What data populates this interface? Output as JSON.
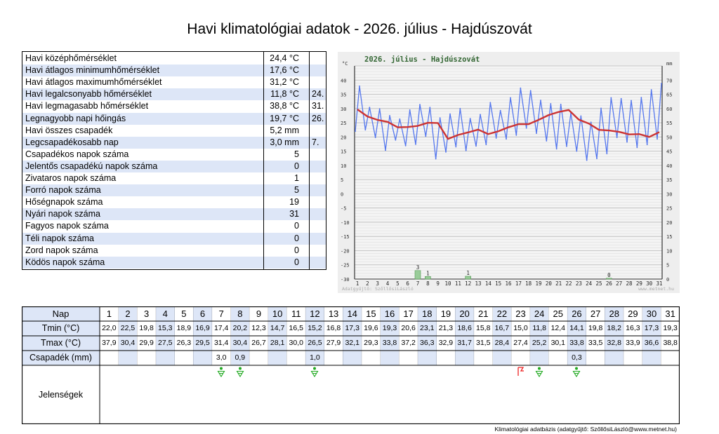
{
  "title": "Havi klimatológiai adatok - 2026. július - Hajdúszovát",
  "stats": [
    {
      "label": "Havi középhőmérséklet",
      "value": "24,4 °C",
      "day": ""
    },
    {
      "label": "Havi átlagos minimumhőmérséklet",
      "value": "17,6 °C",
      "day": ""
    },
    {
      "label": "Havi átlagos maximumhőmérséklet",
      "value": "31,2 °C",
      "day": ""
    },
    {
      "label": "Havi legalcsonyabb hőmérséklet",
      "value": "11,8 °C",
      "day": "24."
    },
    {
      "label": "Havi legmagasabb hőmérséklet",
      "value": "38,8 °C",
      "day": "31."
    },
    {
      "label": "Legnagyobb napi hőingás",
      "value": "19,7 °C",
      "day": "26."
    },
    {
      "label": "Havi összes csapadék",
      "value": "5,2 mm",
      "day": ""
    },
    {
      "label": "Legcsapadékosabb nap",
      "value": "3,0 mm",
      "day": "7."
    },
    {
      "label": "Csapadékos napok száma",
      "value": "5",
      "day": ""
    },
    {
      "label": "Jelentős csapadékú napok száma",
      "value": "0",
      "day": ""
    },
    {
      "label": "Zivataros napok száma",
      "value": "1",
      "day": ""
    },
    {
      "label": "Forró napok száma",
      "value": "5",
      "day": ""
    },
    {
      "label": "Hőségnapok száma",
      "value": "19",
      "day": ""
    },
    {
      "label": "Nyári napok száma",
      "value": "31",
      "day": ""
    },
    {
      "label": "Fagyos napok száma",
      "value": "0",
      "day": ""
    },
    {
      "label": "Téli napok száma",
      "value": "0",
      "day": ""
    },
    {
      "label": "Zord napok száma",
      "value": "0",
      "day": ""
    },
    {
      "label": "Ködös napok száma",
      "value": "0",
      "day": ""
    }
  ],
  "chart_data": {
    "type": "line",
    "title": "2026. július - Hajdúszovát",
    "ylabel_left": "°C",
    "ylabel_right": "mm",
    "ylim": [
      -30,
      45
    ],
    "ylim_right": [
      0,
      75
    ],
    "y_ticks_left": [
      "40",
      "35",
      "30",
      "25",
      "20",
      "15",
      "10",
      "5",
      "0",
      "-5",
      "-10",
      "-15",
      "-20",
      "-25",
      "-30"
    ],
    "y_ticks_right": [
      "70",
      "65",
      "60",
      "55",
      "50",
      "45",
      "40",
      "35",
      "30",
      "25",
      "20",
      "15",
      "10",
      "5",
      "0"
    ],
    "x": [
      1,
      2,
      3,
      4,
      5,
      6,
      7,
      8,
      9,
      10,
      11,
      12,
      13,
      14,
      15,
      16,
      17,
      18,
      19,
      20,
      21,
      22,
      23,
      24,
      25,
      26,
      27,
      28,
      29,
      30,
      31
    ],
    "x_ticks": [
      "1",
      "2",
      "3",
      "4",
      "5",
      "6",
      "7",
      "8",
      "9",
      "10",
      "11",
      "12",
      "13",
      "14",
      "15",
      "16",
      "17",
      "18",
      "19",
      "20",
      "21",
      "22",
      "23",
      "24",
      "25",
      "26",
      "27",
      "28",
      "29",
      "30",
      "31"
    ],
    "series": [
      {
        "key": "tmin",
        "color": "#5577ee",
        "values": [
          22.0,
          22.5,
          19.8,
          15.3,
          18.9,
          16.9,
          17.4,
          20.2,
          12.3,
          14.7,
          16.5,
          15.2,
          16.8,
          17.3,
          19.6,
          19.3,
          20.6,
          23.1,
          21.3,
          18.6,
          15.8,
          16.7,
          15.0,
          11.8,
          12.4,
          14.1,
          19.8,
          18.2,
          16.3,
          17.3,
          19.3
        ]
      },
      {
        "key": "tmax",
        "color": "#5577ee",
        "values": [
          37.9,
          30.4,
          29.9,
          27.5,
          26.3,
          29.5,
          31.4,
          30.4,
          26.7,
          28.1,
          30.0,
          26.5,
          27.9,
          32.1,
          29.3,
          33.8,
          37.2,
          36.3,
          32.9,
          31.7,
          31.5,
          28.4,
          27.4,
          25.2,
          30.1,
          33.8,
          33.5,
          32.8,
          33.9,
          36.6,
          38.8
        ]
      },
      {
        "key": "running_mean",
        "color": "#cc3333",
        "values": [
          29.7,
          27.2,
          26.0,
          25.3,
          23.4,
          23.5,
          23.9,
          25.0,
          24.9,
          19.3,
          20.7,
          21.6,
          22.6,
          21.0,
          22.0,
          23.4,
          24.5,
          24.5,
          26.0,
          27.7,
          28.8,
          29.5,
          26.1,
          24.7,
          22.5,
          22.3,
          21.8,
          20.9,
          21.0,
          20.0,
          21.7
        ]
      },
      {
        "key": "precip",
        "color": "#99cc99",
        "values": [
          0,
          0,
          0,
          0,
          0,
          0,
          3.0,
          0.9,
          0,
          0,
          0,
          1.0,
          0,
          0,
          0,
          0,
          0,
          0,
          0,
          0,
          0,
          0,
          0,
          0,
          0,
          0.3,
          0,
          0,
          0,
          0,
          0
        ]
      }
    ],
    "precip_labels": [
      {
        "day": 7,
        "text": "3"
      },
      {
        "day": 8,
        "text": "1"
      },
      {
        "day": 12,
        "text": "1"
      },
      {
        "day": 26,
        "text": "0"
      }
    ],
    "watermark_left": "Adatgyűjtő: SzőllősiLászló",
    "watermark_right": "www.metnet.hu",
    "grid": true
  },
  "daily": {
    "labels": {
      "day": "Nap",
      "tmin": "Tmin (°C)",
      "tmax": "Tmax (°C)",
      "precip": "Csapadék (mm)",
      "phen": "Jelenségek"
    },
    "days": [
      "1",
      "2",
      "3",
      "4",
      "5",
      "6",
      "7",
      "8",
      "9",
      "10",
      "11",
      "12",
      "13",
      "14",
      "15",
      "16",
      "17",
      "18",
      "19",
      "20",
      "21",
      "22",
      "23",
      "24",
      "25",
      "26",
      "27",
      "28",
      "29",
      "30",
      "31"
    ],
    "tmin": [
      "22,0",
      "22,5",
      "19,8",
      "15,3",
      "18,9",
      "16,9",
      "17,4",
      "20,2",
      "12,3",
      "14,7",
      "16,5",
      "15,2",
      "16,8",
      "17,3",
      "19,6",
      "19,3",
      "20,6",
      "23,1",
      "21,3",
      "18,6",
      "15,8",
      "16,7",
      "15,0",
      "11,8",
      "12,4",
      "14,1",
      "19,8",
      "18,2",
      "16,3",
      "17,3",
      "19,3"
    ],
    "tmax": [
      "37,9",
      "30,4",
      "29,9",
      "27,5",
      "26,3",
      "29,5",
      "31,4",
      "30,4",
      "26,7",
      "28,1",
      "30,0",
      "26,5",
      "27,9",
      "32,1",
      "29,3",
      "33,8",
      "37,2",
      "36,3",
      "32,9",
      "31,7",
      "31,5",
      "28,4",
      "27,4",
      "25,2",
      "30,1",
      "33,8",
      "33,5",
      "32,8",
      "33,9",
      "36,6",
      "38,8"
    ],
    "precip": [
      "",
      "",
      "",
      "",
      "",
      "",
      "3,0",
      "0,9",
      "",
      "",
      "",
      "1,0",
      "",
      "",
      "",
      "",
      "",
      "",
      "",
      "",
      "",
      "",
      "",
      "",
      "",
      "0,3",
      "",
      "",
      "",
      "",
      ""
    ],
    "phenomena": [
      {
        "day": 7,
        "icon": "rain-shower-icon",
        "color": "#22aa22"
      },
      {
        "day": 8,
        "icon": "rain-shower-icon",
        "color": "#22aa22"
      },
      {
        "day": 12,
        "icon": "rain-shower-icon",
        "color": "#22aa22"
      },
      {
        "day": 23,
        "icon": "thunderstorm-icon",
        "color": "#ee2222"
      },
      {
        "day": 24,
        "icon": "rain-shower-icon",
        "color": "#22aa22"
      },
      {
        "day": 26,
        "icon": "rain-shower-icon",
        "color": "#22aa22"
      }
    ]
  },
  "footer": "Klimatológiai adatbázis (adatgyűjtő: SzőllősiLászló@www.metnet.hu)",
  "colors": {
    "stripe": "#dde6f7",
    "chart_bg": "#eeeeee",
    "title_green": "#336633"
  }
}
